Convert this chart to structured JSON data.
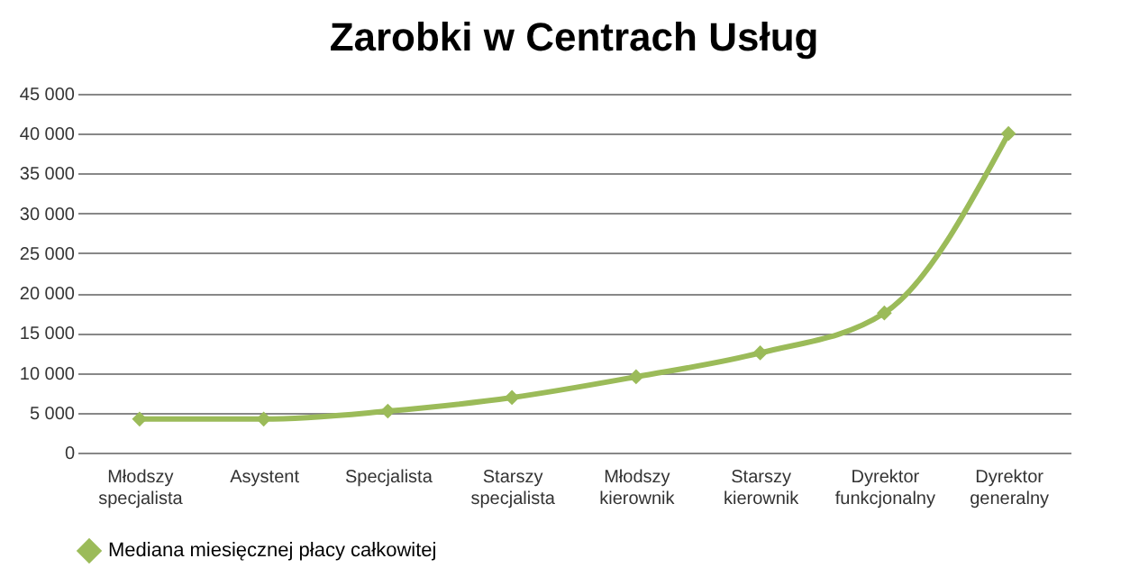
{
  "chart_data": {
    "type": "line",
    "title": "Zarobki w Centrach Usług",
    "categories": [
      "Młodszy specjalista",
      "Asystent",
      "Specjalista",
      "Starszy specjalista",
      "Młodszy kierownik",
      "Starszy kierownik",
      "Dyrektor funkcjonalny",
      "Dyrektor generalny"
    ],
    "series": [
      {
        "name": "Mediana miesięcznej płacy całkowitej",
        "color": "#9bbb59",
        "values": [
          4200,
          4200,
          5200,
          6900,
          9500,
          12500,
          17500,
          40000
        ]
      }
    ],
    "ylim": [
      0,
      45000
    ],
    "yticks": [
      0,
      {
        "value": 5000,
        "label": "5 000"
      },
      {
        "value": 10000,
        "label": "10 000"
      },
      {
        "value": 15000,
        "label": "15 000"
      },
      {
        "value": 20000,
        "label": "20 000"
      },
      {
        "value": 25000,
        "label": "25 000"
      },
      {
        "value": 30000,
        "label": "30 000"
      },
      {
        "value": 35000,
        "label": "35 000"
      },
      {
        "value": 40000,
        "label": "40 000"
      },
      {
        "value": 45000,
        "label": "45 000"
      }
    ],
    "grid": "y",
    "legend": "bottom",
    "marker": "diamond",
    "line_style": "solid"
  }
}
